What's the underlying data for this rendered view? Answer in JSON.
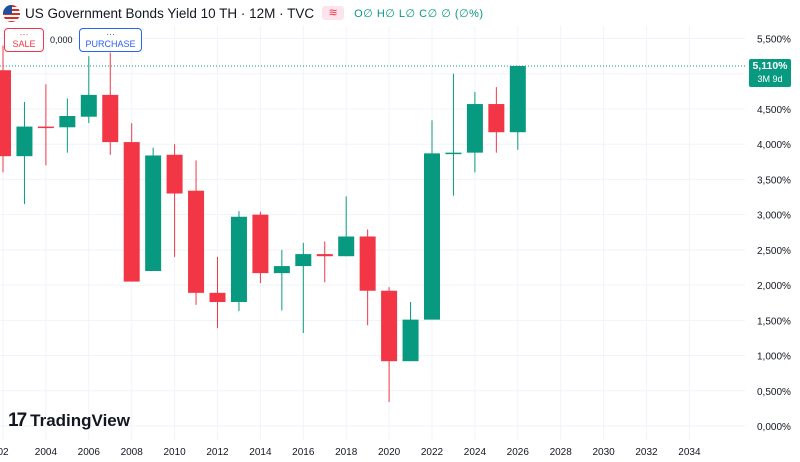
{
  "header": {
    "title": "US Government Bonds Yield 10 TH · 12M · TVC",
    "ohlc_text": "O∅ H∅ L∅ C∅ ∅ (∅%)",
    "visibility_icon": "eye-toggle-icon"
  },
  "trade": {
    "sale_dots": "···",
    "sale_label": "SALE",
    "spread": "0,000",
    "purchase_dots": "···",
    "purchase_label": "PURCHASE"
  },
  "logo": {
    "mark": "17",
    "text": "TradingView"
  },
  "price_tag": {
    "price": "5,110%",
    "timer": "3M 9d"
  },
  "colors": {
    "up": "#089981",
    "down": "#f23645",
    "grid": "#f0f3fa",
    "dotted_line": "#089981"
  },
  "chart_data": {
    "type": "candlestick",
    "title": "US Government Bonds Yield 10 TH · 12M · TVC",
    "x_ticks": [
      "02",
      "2004",
      "2006",
      "2008",
      "2010",
      "2012",
      "2014",
      "2016",
      "2018",
      "2020",
      "2022",
      "2024",
      "2026",
      "2028",
      "2030",
      "2032",
      "2034"
    ],
    "y_ticks": [
      "5,500%",
      "5,000%",
      "4,500%",
      "4,000%",
      "3,500%",
      "3,000%",
      "2,500%",
      "2,000%",
      "1,500%",
      "1,000%",
      "0,500%",
      "0,000%"
    ],
    "ylim": [
      0,
      5.5
    ],
    "xlim": [
      2002,
      2035
    ],
    "current_price": 5.11,
    "candles": [
      {
        "year": 2002,
        "open": 5.05,
        "high": 5.4,
        "low": 3.6,
        "close": 3.83
      },
      {
        "year": 2003,
        "open": 3.83,
        "high": 4.6,
        "low": 3.15,
        "close": 4.25
      },
      {
        "year": 2004,
        "open": 4.25,
        "high": 4.85,
        "low": 3.7,
        "close": 4.24
      },
      {
        "year": 2005,
        "open": 4.24,
        "high": 4.65,
        "low": 3.88,
        "close": 4.4
      },
      {
        "year": 2006,
        "open": 4.39,
        "high": 5.25,
        "low": 4.3,
        "close": 4.7
      },
      {
        "year": 2007,
        "open": 4.7,
        "high": 5.3,
        "low": 3.85,
        "close": 4.03
      },
      {
        "year": 2008,
        "open": 4.03,
        "high": 4.3,
        "low": 2.05,
        "close": 2.05
      },
      {
        "year": 2009,
        "open": 2.2,
        "high": 3.95,
        "low": 2.2,
        "close": 3.84
      },
      {
        "year": 2010,
        "open": 3.85,
        "high": 4.0,
        "low": 2.4,
        "close": 3.3
      },
      {
        "year": 2011,
        "open": 3.34,
        "high": 3.77,
        "low": 1.72,
        "close": 1.89
      },
      {
        "year": 2012,
        "open": 1.89,
        "high": 2.4,
        "low": 1.39,
        "close": 1.76
      },
      {
        "year": 2013,
        "open": 1.76,
        "high": 3.05,
        "low": 1.63,
        "close": 2.97
      },
      {
        "year": 2014,
        "open": 3.0,
        "high": 3.04,
        "low": 2.03,
        "close": 2.17
      },
      {
        "year": 2015,
        "open": 2.17,
        "high": 2.5,
        "low": 1.64,
        "close": 2.27
      },
      {
        "year": 2016,
        "open": 2.27,
        "high": 2.6,
        "low": 1.32,
        "close": 2.44
      },
      {
        "year": 2017,
        "open": 2.44,
        "high": 2.62,
        "low": 2.04,
        "close": 2.41
      },
      {
        "year": 2018,
        "open": 2.41,
        "high": 3.26,
        "low": 2.41,
        "close": 2.69
      },
      {
        "year": 2019,
        "open": 2.69,
        "high": 2.79,
        "low": 1.43,
        "close": 1.92
      },
      {
        "year": 2020,
        "open": 1.92,
        "high": 1.97,
        "low": 0.34,
        "close": 0.92
      },
      {
        "year": 2021,
        "open": 0.92,
        "high": 1.76,
        "low": 0.92,
        "close": 1.51
      },
      {
        "year": 2022,
        "open": 1.51,
        "high": 4.34,
        "low": 1.51,
        "close": 3.87
      },
      {
        "year": 2023,
        "open": 3.87,
        "high": 5.0,
        "low": 3.27,
        "close": 3.88
      },
      {
        "year": 2024,
        "open": 3.88,
        "high": 4.74,
        "low": 3.6,
        "close": 4.57
      },
      {
        "year": 2025,
        "open": 4.57,
        "high": 4.81,
        "low": 3.88,
        "close": 4.17
      },
      {
        "year": 2026,
        "open": 4.17,
        "high": 5.11,
        "low": 3.92,
        "close": 5.11
      }
    ]
  }
}
